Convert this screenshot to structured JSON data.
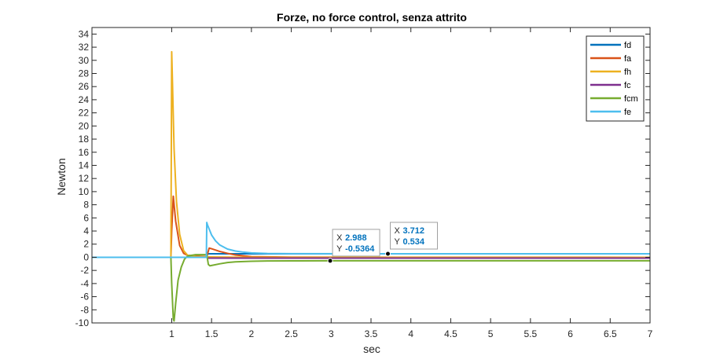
{
  "chart_data": {
    "type": "line",
    "title": "Forze, no force control, senza attrito",
    "xlabel": "sec",
    "ylabel": "Newton",
    "xlim": [
      0,
      7
    ],
    "ylim": [
      -10,
      35
    ],
    "xticks": [
      1,
      1.5,
      2,
      2.5,
      3,
      3.5,
      4,
      4.5,
      5,
      5.5,
      6,
      6.5,
      7
    ],
    "yticks": [
      -10,
      -8,
      -6,
      -4,
      -2,
      0,
      2,
      4,
      6,
      8,
      10,
      12,
      14,
      16,
      18,
      20,
      22,
      24,
      26,
      28,
      30,
      32,
      34
    ],
    "grid": false,
    "legend_position": "top-right",
    "series": [
      {
        "name": "fd",
        "color": "#0072BD",
        "x": [
          0,
          1.44,
          1.45,
          7
        ],
        "y": [
          0,
          0,
          0.534,
          0.534
        ]
      },
      {
        "name": "fa",
        "color": "#D95319",
        "x": [
          0,
          0.99,
          1.0,
          1.02,
          1.05,
          1.1,
          1.15,
          1.2,
          1.3,
          1.44,
          1.47,
          1.5,
          1.6,
          1.7,
          1.8,
          2.0,
          2.5,
          7
        ],
        "y": [
          0,
          0,
          4.0,
          9.3,
          5.5,
          1.8,
          0.6,
          0.3,
          0.2,
          0.1,
          1.4,
          1.3,
          0.9,
          0.6,
          0.35,
          0.1,
          0.02,
          0
        ]
      },
      {
        "name": "fh",
        "color": "#EDB120",
        "x": [
          0,
          0.99,
          1.0,
          1.01,
          1.03,
          1.06,
          1.1,
          1.15,
          1.2,
          1.3,
          1.5,
          2.0,
          7
        ],
        "y": [
          0,
          0,
          31.3,
          26.5,
          16.5,
          8.5,
          3.5,
          1.0,
          0.3,
          0.1,
          0.05,
          0,
          0
        ]
      },
      {
        "name": "fc",
        "color": "#7E2F8E",
        "x": [
          0,
          1.44,
          1.45,
          2.0,
          7
        ],
        "y": [
          0,
          0,
          -0.12,
          -0.12,
          -0.12
        ]
      },
      {
        "name": "fcm",
        "color": "#77AC30",
        "x": [
          0,
          0.99,
          1.0,
          1.02,
          1.03,
          1.05,
          1.08,
          1.12,
          1.16,
          1.2,
          1.3,
          1.44,
          1.46,
          1.48,
          1.5,
          1.6,
          1.7,
          1.8,
          2.0,
          2.2,
          2.5,
          3.0,
          7
        ],
        "y": [
          0,
          0,
          -4.0,
          -9.4,
          -9.7,
          -7.0,
          -3.5,
          -1.5,
          -0.3,
          0.2,
          0.4,
          0.4,
          -1.1,
          -1.3,
          -1.25,
          -1.0,
          -0.8,
          -0.7,
          -0.6,
          -0.56,
          -0.54,
          -0.5364,
          -0.5364
        ]
      },
      {
        "name": "fe",
        "color": "#4DBEEE",
        "x": [
          0,
          1.435,
          1.44,
          1.45,
          1.5,
          1.55,
          1.6,
          1.7,
          1.8,
          1.9,
          2.0,
          2.2,
          2.5,
          7
        ],
        "y": [
          0,
          0,
          5.3,
          4.9,
          3.4,
          2.5,
          1.9,
          1.25,
          0.95,
          0.78,
          0.66,
          0.57,
          0.54,
          0.534
        ]
      }
    ],
    "datatips": [
      {
        "x_label": "X",
        "y_label": "Y",
        "x": "2.988",
        "y": "-0.5364",
        "x_value": 2.988,
        "y_value": -0.5364
      },
      {
        "x_label": "X",
        "y_label": "Y",
        "x": "3.712",
        "y": "0.534",
        "x_value": 3.712,
        "y_value": 0.534
      }
    ]
  }
}
